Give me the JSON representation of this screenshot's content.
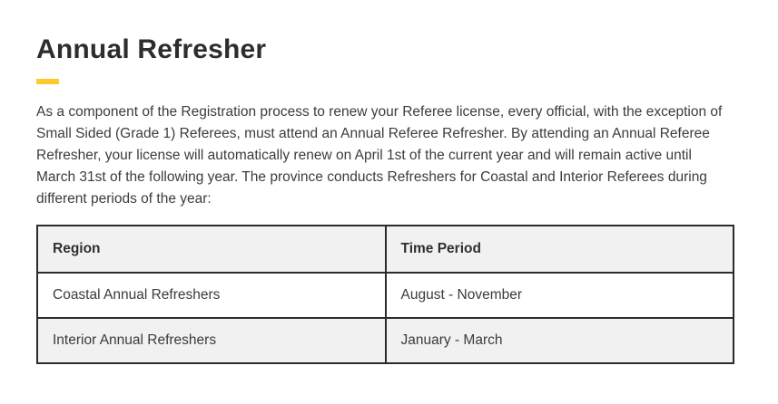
{
  "page": {
    "title": "Annual Refresher",
    "accent_color": "#ffcb2b",
    "intro": "As a component of the Registration process to renew your Referee license, every official, with the exception of Small Sided (Grade 1) Referees, must attend an Annual Referee Refresher. By attending an Annual Referee Refresher, your license will automatically renew on April 1st of the current year and will remain active until March 31st of the following year. The province conducts Refreshers for Coastal and Interior Referees during different periods of the year:"
  },
  "table": {
    "headers": [
      "Region",
      "Time Period"
    ],
    "rows": [
      [
        "Coastal Annual Refreshers",
        "August - November"
      ],
      [
        "Interior Annual Refreshers",
        "January - March"
      ]
    ]
  }
}
